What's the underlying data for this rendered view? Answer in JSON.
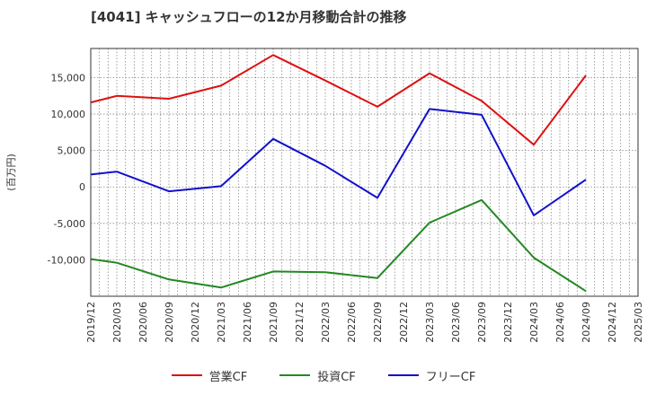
{
  "chart_data": {
    "type": "line",
    "title": "[4041]  キャッシュフローの12か月移動合計の推移",
    "ylabel": "(百万円)",
    "xlabel": "",
    "ylim": [
      -15000,
      19000
    ],
    "yticks": [
      -10000,
      -5000,
      0,
      5000,
      10000,
      15000
    ],
    "ytick_labels": [
      "-10,000",
      "-5,000",
      "0",
      "5,000",
      "10,000",
      "15,000"
    ],
    "x_ticks": [
      "2019/12",
      "2020/03",
      "2020/06",
      "2020/09",
      "2020/12",
      "2021/03",
      "2021/06",
      "2021/09",
      "2021/12",
      "2022/03",
      "2022/06",
      "2022/09",
      "2022/12",
      "2023/03",
      "2023/06",
      "2023/09",
      "2023/12",
      "2024/03",
      "2024/06",
      "2024/09",
      "2024/12",
      "2025/03"
    ],
    "grid": true,
    "legend_position": "bottom",
    "series": [
      {
        "name": "営業CF",
        "color": "#dd1111",
        "x": [
          "2019/12",
          "2020/03",
          "2020/09",
          "2021/03",
          "2021/09",
          "2022/03",
          "2022/09",
          "2023/03",
          "2023/09",
          "2024/03",
          "2024/09"
        ],
        "values": [
          11600,
          12500,
          12100,
          13900,
          18100,
          14600,
          11000,
          15600,
          11800,
          5800,
          15300
        ]
      },
      {
        "name": "投資CF",
        "color": "#228822",
        "x": [
          "2019/12",
          "2020/03",
          "2020/09",
          "2021/03",
          "2021/09",
          "2022/03",
          "2022/09",
          "2023/03",
          "2023/09",
          "2024/03",
          "2024/09"
        ],
        "values": [
          -9900,
          -10400,
          -12700,
          -13800,
          -11600,
          -11700,
          -12500,
          -4900,
          -1800,
          -9700,
          -14300
        ]
      },
      {
        "name": "フリーCF",
        "color": "#1111cc",
        "x": [
          "2019/12",
          "2020/03",
          "2020/09",
          "2021/03",
          "2021/09",
          "2022/03",
          "2022/09",
          "2023/03",
          "2023/09",
          "2024/03",
          "2024/09"
        ],
        "values": [
          1700,
          2100,
          -600,
          100,
          6600,
          2900,
          -1500,
          10700,
          9900,
          -3900,
          1000
        ]
      }
    ]
  }
}
